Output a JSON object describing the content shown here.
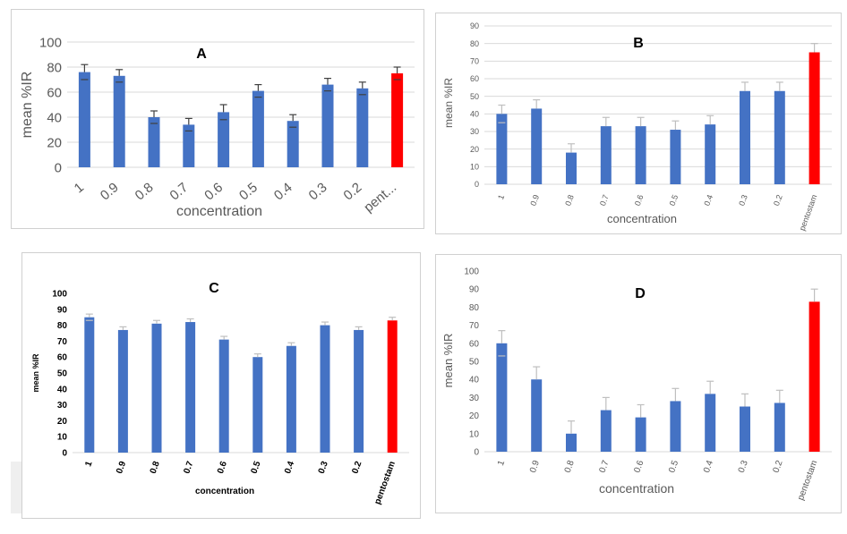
{
  "colors": {
    "bar": "#4472C4",
    "highlight": "#FF0000",
    "grid": "#d9d9d9",
    "axis_text": "#595959",
    "error_bar": "#404040"
  },
  "chart_data": [
    {
      "id": "A",
      "type": "bar",
      "title": "A",
      "xlabel": "concentration",
      "ylabel": "mean %IR",
      "ylim": [
        0,
        100
      ],
      "yticks": [
        0,
        20,
        40,
        60,
        80,
        100
      ],
      "grid": true,
      "categories": [
        "1",
        "0.9",
        "0.8",
        "0.7",
        "0.6",
        "0.5",
        "0.4",
        "0.3",
        "0.2",
        "pent..."
      ],
      "series": [
        {
          "values": [
            76,
            73,
            40,
            34,
            44,
            61,
            37,
            66,
            63,
            75
          ]
        }
      ],
      "errors": [
        6,
        5,
        5,
        5,
        6,
        5,
        5,
        5,
        5,
        5
      ],
      "highlight_index": 9
    },
    {
      "id": "B",
      "type": "bar",
      "title": "B",
      "xlabel": "concentration",
      "ylabel": "mean %IR",
      "ylim": [
        0,
        90
      ],
      "yticks": [
        0,
        10,
        20,
        30,
        40,
        50,
        60,
        70,
        80,
        90
      ],
      "grid": true,
      "categories": [
        "1",
        "0.9",
        "0.8",
        "0.7",
        "0.6",
        "0.5",
        "0.4",
        "0.3",
        "0.2",
        "pentostam"
      ],
      "series": [
        {
          "values": [
            40,
            43,
            18,
            33,
            33,
            31,
            34,
            53,
            53,
            75
          ]
        }
      ],
      "errors": [
        5,
        5,
        5,
        5,
        5,
        5,
        5,
        5,
        5,
        5
      ],
      "highlight_index": 9
    },
    {
      "id": "C",
      "type": "bar",
      "title": "C",
      "xlabel": "concentration",
      "ylabel": "mean %IR",
      "ylim": [
        0,
        100
      ],
      "yticks": [
        0,
        10,
        20,
        30,
        40,
        50,
        60,
        70,
        80,
        90,
        100
      ],
      "grid": false,
      "categories": [
        "1",
        "0.9",
        "0.8",
        "0.7",
        "0.6",
        "0.5",
        "0.4",
        "0.3",
        "0.2",
        "pentostam"
      ],
      "series": [
        {
          "values": [
            85,
            77,
            81,
            82,
            71,
            60,
            67,
            80,
            77,
            83
          ]
        }
      ],
      "errors": [
        2,
        2,
        2,
        2,
        2,
        2,
        2,
        2,
        2,
        2
      ],
      "highlight_index": 9
    },
    {
      "id": "D",
      "type": "bar",
      "title": "D",
      "xlabel": "concentration",
      "ylabel": "mean %IR",
      "ylim": [
        0,
        100
      ],
      "yticks": [
        0,
        10,
        20,
        30,
        40,
        50,
        60,
        70,
        80,
        90,
        100
      ],
      "grid": false,
      "categories": [
        "1",
        "0.9",
        "0.8",
        "0.7",
        "0.6",
        "0.5",
        "0.4",
        "0.3",
        "0.2",
        "pentostam"
      ],
      "series": [
        {
          "values": [
            60,
            40,
            10,
            23,
            19,
            28,
            32,
            25,
            27,
            83
          ]
        }
      ],
      "errors": [
        7,
        7,
        7,
        7,
        7,
        7,
        7,
        7,
        7,
        7
      ],
      "highlight_index": 9
    }
  ]
}
